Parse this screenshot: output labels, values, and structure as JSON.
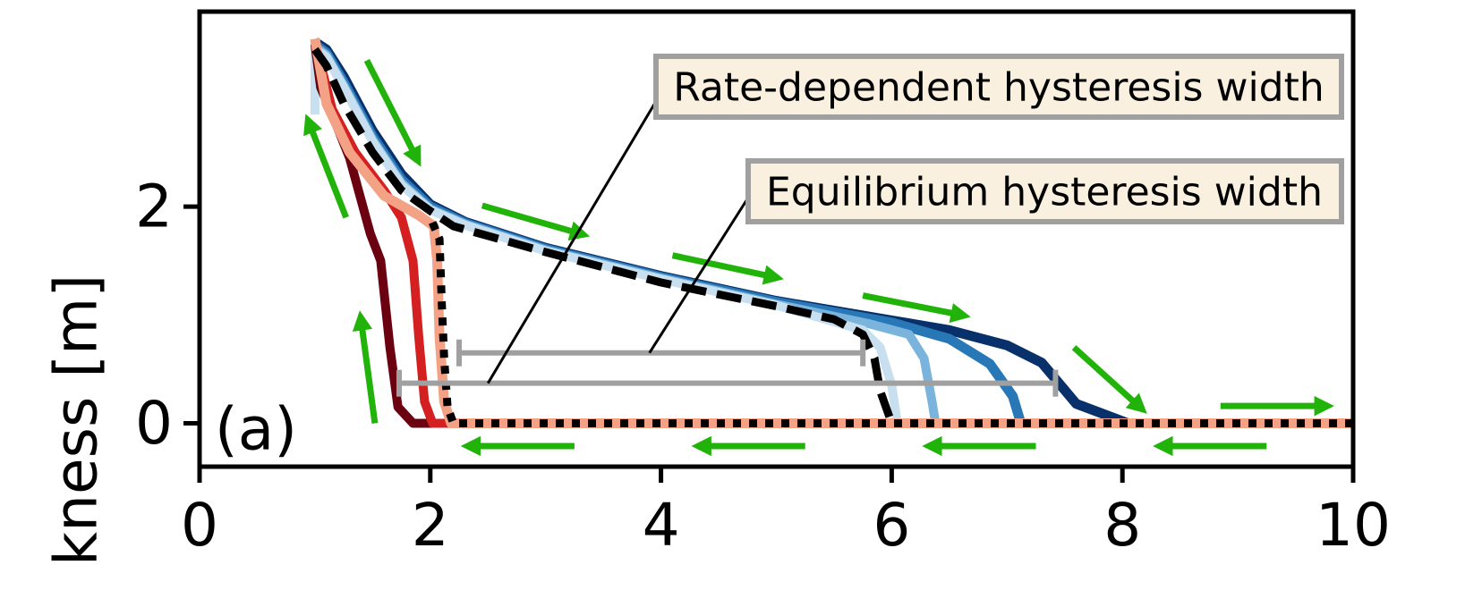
{
  "chart_data": {
    "type": "line",
    "ylabel": "kness [m]",
    "panel_label": "(a)",
    "xlim": [
      0,
      10
    ],
    "ylim": [
      -0.4,
      3.8
    ],
    "x_ticks": [
      "0",
      "2",
      "4",
      "6",
      "8",
      "10"
    ],
    "y_ticks": [
      "0",
      "2"
    ],
    "grid": false,
    "colors": {
      "arrow": "#22b30a",
      "bracket": "#a0a0a0",
      "callout_fill": "#faf0e0",
      "callout_border": "#a0a0a0"
    },
    "annotations": [
      {
        "text": "Rate-dependent hysteresis width"
      },
      {
        "text": "Equilibrium hysteresis width"
      }
    ],
    "brackets": {
      "equilibrium": {
        "x_start": 2.25,
        "x_end": 5.75,
        "y": 0.65
      },
      "rate_dependent": {
        "x_start": 1.73,
        "x_end": 7.42,
        "y": 0.37
      }
    },
    "series": [
      {
        "color": "#08306b",
        "width": 11,
        "dash": "",
        "x": [
          1.0,
          1.1,
          1.25,
          1.5,
          1.75,
          2.0,
          2.3,
          3.0,
          4.0,
          5.0,
          6.0,
          6.5,
          7.0,
          7.3,
          7.6,
          8.05,
          10.0
        ],
        "y": [
          3.52,
          3.45,
          3.2,
          2.7,
          2.3,
          2.02,
          1.86,
          1.62,
          1.36,
          1.13,
          0.95,
          0.86,
          0.72,
          0.56,
          0.18,
          0.0,
          0.0
        ]
      },
      {
        "color": "#2878b8",
        "width": 11,
        "dash": "",
        "x": [
          1.0,
          1.1,
          1.25,
          1.5,
          1.75,
          2.0,
          2.3,
          3.0,
          4.0,
          5.0,
          6.0,
          6.5,
          6.85,
          7.05,
          7.12,
          10.0
        ],
        "y": [
          3.5,
          3.42,
          3.15,
          2.65,
          2.25,
          2.0,
          1.85,
          1.61,
          1.35,
          1.12,
          0.93,
          0.78,
          0.55,
          0.25,
          0.0,
          0.0
        ]
      },
      {
        "color": "#7ab4dc",
        "width": 10,
        "dash": "",
        "x": [
          1.0,
          1.1,
          1.25,
          1.5,
          1.75,
          2.0,
          2.3,
          3.0,
          4.0,
          5.0,
          5.8,
          6.15,
          6.28,
          6.35,
          6.38,
          10.0
        ],
        "y": [
          3.48,
          3.4,
          3.12,
          2.62,
          2.22,
          1.98,
          1.84,
          1.6,
          1.34,
          1.1,
          0.92,
          0.82,
          0.6,
          0.2,
          0.0,
          0.0
        ]
      },
      {
        "color": "#c8dff0",
        "width": 10,
        "dash": "",
        "x": [
          1.0,
          1.0,
          1.1,
          1.25,
          1.5,
          1.75,
          2.0,
          2.3,
          3.0,
          4.0,
          5.0,
          5.75,
          5.9,
          6.0,
          6.05,
          10.0
        ],
        "y": [
          2.85,
          3.46,
          3.38,
          3.1,
          2.6,
          2.2,
          1.97,
          1.83,
          1.59,
          1.33,
          1.09,
          0.86,
          0.7,
          0.35,
          0.0,
          0.0
        ]
      },
      {
        "color": "#6b0010",
        "width": 10,
        "dash": "",
        "x": [
          10.0,
          1.85,
          1.72,
          1.65,
          1.57,
          1.48,
          1.3,
          1.15,
          1.05,
          1.0
        ],
        "y": [
          0.0,
          0.0,
          0.15,
          0.7,
          1.5,
          1.75,
          2.45,
          2.85,
          3.1,
          3.5
        ]
      },
      {
        "color": "#d42020",
        "width": 10,
        "dash": "",
        "x": [
          10.0,
          2.02,
          1.95,
          1.9,
          1.85,
          1.75,
          1.6,
          1.35,
          1.15,
          1.0
        ],
        "y": [
          0.0,
          0.0,
          0.2,
          0.8,
          1.5,
          1.9,
          2.15,
          2.5,
          2.9,
          3.52
        ]
      },
      {
        "color": "#f4a286",
        "width": 11,
        "dash": "",
        "x": [
          10.0,
          2.18,
          2.12,
          2.08,
          2.06,
          2.03,
          1.9,
          1.6,
          1.3,
          1.1,
          1.0
        ],
        "y": [
          0.0,
          0.0,
          0.2,
          0.8,
          1.5,
          1.82,
          1.92,
          2.1,
          2.5,
          2.95,
          3.55
        ]
      },
      {
        "color": "#000000",
        "width": 9,
        "dash": "28 12",
        "x": [
          1.0,
          1.1,
          1.25,
          1.5,
          1.75,
          2.0,
          2.2,
          3.0,
          4.0,
          5.0,
          5.5,
          5.75,
          5.85,
          5.9,
          6.0
        ],
        "y": [
          3.45,
          3.3,
          2.95,
          2.5,
          2.15,
          1.96,
          1.82,
          1.58,
          1.3,
          1.08,
          0.96,
          0.82,
          0.6,
          0.3,
          0.0
        ]
      },
      {
        "color": "#000000",
        "width": 9,
        "dash": "9 9",
        "x": [
          10.0,
          2.2,
          2.15,
          2.12,
          2.1,
          2.08,
          2.0
        ],
        "y": [
          0.0,
          0.0,
          0.15,
          0.6,
          1.1,
          1.7,
          1.9
        ]
      }
    ],
    "arrows": [
      {
        "from": [
          1.45,
          3.35
        ],
        "to": [
          1.88,
          2.45
        ]
      },
      {
        "from": [
          1.27,
          1.9
        ],
        "to": [
          0.95,
          2.77
        ]
      },
      {
        "from": [
          2.45,
          2.01
        ],
        "to": [
          3.3,
          1.75
        ]
      },
      {
        "from": [
          4.1,
          1.55
        ],
        "to": [
          4.98,
          1.35
        ]
      },
      {
        "from": [
          5.75,
          1.18
        ],
        "to": [
          6.6,
          1.0
        ]
      },
      {
        "from": [
          7.58,
          0.7
        ],
        "to": [
          8.15,
          0.15
        ]
      },
      {
        "from": [
          8.85,
          0.16
        ],
        "to": [
          9.75,
          0.16
        ]
      },
      {
        "from": [
          1.52,
          0.0
        ],
        "to": [
          1.4,
          0.95
        ]
      },
      {
        "from": [
          3.25,
          -0.21
        ],
        "to": [
          2.35,
          -0.21
        ]
      },
      {
        "from": [
          5.25,
          -0.21
        ],
        "to": [
          4.35,
          -0.21
        ]
      },
      {
        "from": [
          7.25,
          -0.21
        ],
        "to": [
          6.35,
          -0.21
        ]
      },
      {
        "from": [
          9.25,
          -0.21
        ],
        "to": [
          8.35,
          -0.21
        ]
      }
    ]
  }
}
